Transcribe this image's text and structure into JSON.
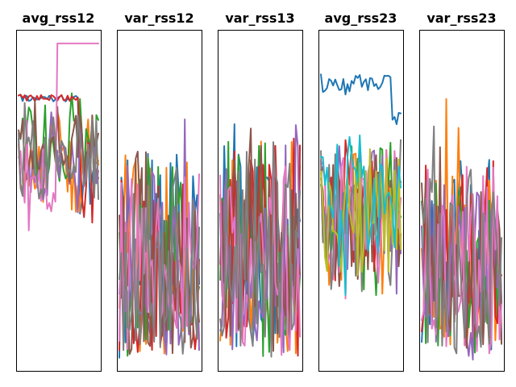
{
  "chart_data": {
    "type": "line",
    "panel_count": 5,
    "axes_ticks": false,
    "grid": false,
    "legend": false,
    "ylim": [
      0,
      1
    ],
    "colors": [
      "#1f77b4",
      "#ff7f0e",
      "#2ca02c",
      "#d62728",
      "#9467bd",
      "#8c564b",
      "#e377c2",
      "#7f7f7f",
      "#bcbd22",
      "#17becf"
    ],
    "panels": [
      {
        "title": "avg_rss12",
        "style": "avg",
        "series_count": 8,
        "x_points": 40,
        "base": 0.62,
        "amp": 0.18,
        "highlight": {
          "color_index": 6,
          "jump_at": 0.45,
          "level": 0.96
        }
      },
      {
        "title": "var_rss12",
        "style": "var",
        "series_count": 8,
        "x_points": 40,
        "base": 0.18,
        "amp": 0.55
      },
      {
        "title": "var_rss13",
        "style": "var",
        "series_count": 8,
        "x_points": 40,
        "base": 0.2,
        "amp": 0.6
      },
      {
        "title": "avg_rss23",
        "style": "avg2",
        "series_count": 10,
        "x_points": 40,
        "base": 0.45,
        "amp": 0.25,
        "top_series": {
          "color_index": 0,
          "level": 0.84
        }
      },
      {
        "title": "var_rss23",
        "style": "var",
        "series_count": 8,
        "x_points": 40,
        "base": 0.22,
        "amp": 0.55
      }
    ]
  }
}
